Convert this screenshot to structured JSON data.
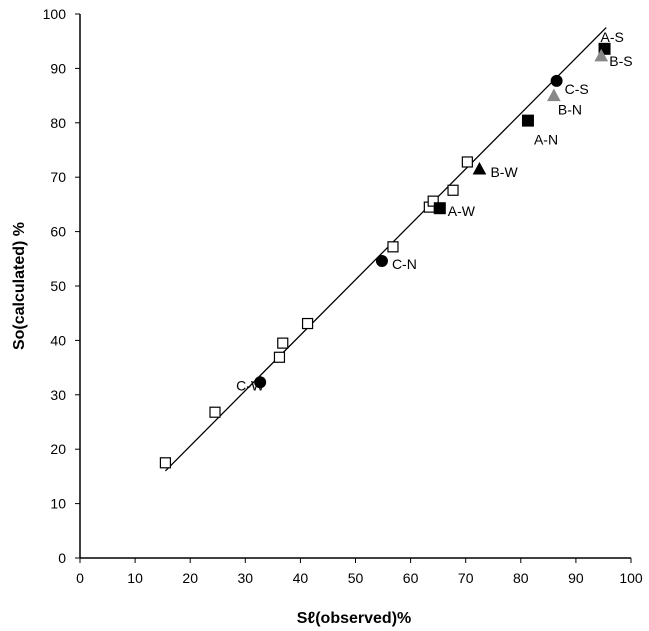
{
  "chart_data": {
    "type": "scatter",
    "title": "",
    "xlabel": "Sℓ(observed)%",
    "ylabel": "So(calculated) %",
    "xlim": [
      0,
      100
    ],
    "ylim": [
      0,
      100
    ],
    "xticks": [
      0,
      10,
      20,
      30,
      40,
      50,
      60,
      70,
      80,
      90,
      100
    ],
    "yticks": [
      0,
      10,
      20,
      30,
      40,
      50,
      60,
      70,
      80,
      90,
      100
    ],
    "grid": false,
    "series": [
      {
        "marker": "open-square",
        "color": "#000000",
        "points": [
          {
            "x": 15.5,
            "y": 17.5
          },
          {
            "x": 24.5,
            "y": 26.8
          },
          {
            "x": 36.2,
            "y": 36.9
          },
          {
            "x": 36.8,
            "y": 39.5
          },
          {
            "x": 41.3,
            "y": 43.1
          },
          {
            "x": 56.8,
            "y": 57.2
          },
          {
            "x": 63.4,
            "y": 64.5
          },
          {
            "x": 64.1,
            "y": 65.6
          },
          {
            "x": 67.7,
            "y": 67.6
          },
          {
            "x": 70.3,
            "y": 72.8
          }
        ]
      },
      {
        "marker": "filled-square",
        "color": "#000000",
        "points": [
          {
            "x": 95.2,
            "y": 93.6,
            "label": "A-S"
          },
          {
            "x": 81.3,
            "y": 80.4,
            "label": "A-N"
          },
          {
            "x": 65.3,
            "y": 64.3,
            "label": "A-W"
          }
        ]
      },
      {
        "marker": "filled-triangle",
        "color": "#000000",
        "points": [
          {
            "x": 94.6,
            "y": 92.3,
            "label": "B-S",
            "color": "#888888"
          },
          {
            "x": 86.0,
            "y": 85.0,
            "label": "B-N",
            "color": "#888888"
          },
          {
            "x": 72.5,
            "y": 71.5,
            "label": "B-W"
          }
        ]
      },
      {
        "marker": "filled-circle",
        "color": "#000000",
        "points": [
          {
            "x": 86.5,
            "y": 87.7,
            "label": "C-S"
          },
          {
            "x": 54.8,
            "y": 54.6,
            "label": "C-N"
          },
          {
            "x": 32.7,
            "y": 32.3,
            "label": "C-W"
          }
        ]
      }
    ],
    "fit_line": {
      "x": [
        15.5,
        95.5
      ],
      "y": [
        16.0,
        97.5
      ]
    }
  }
}
